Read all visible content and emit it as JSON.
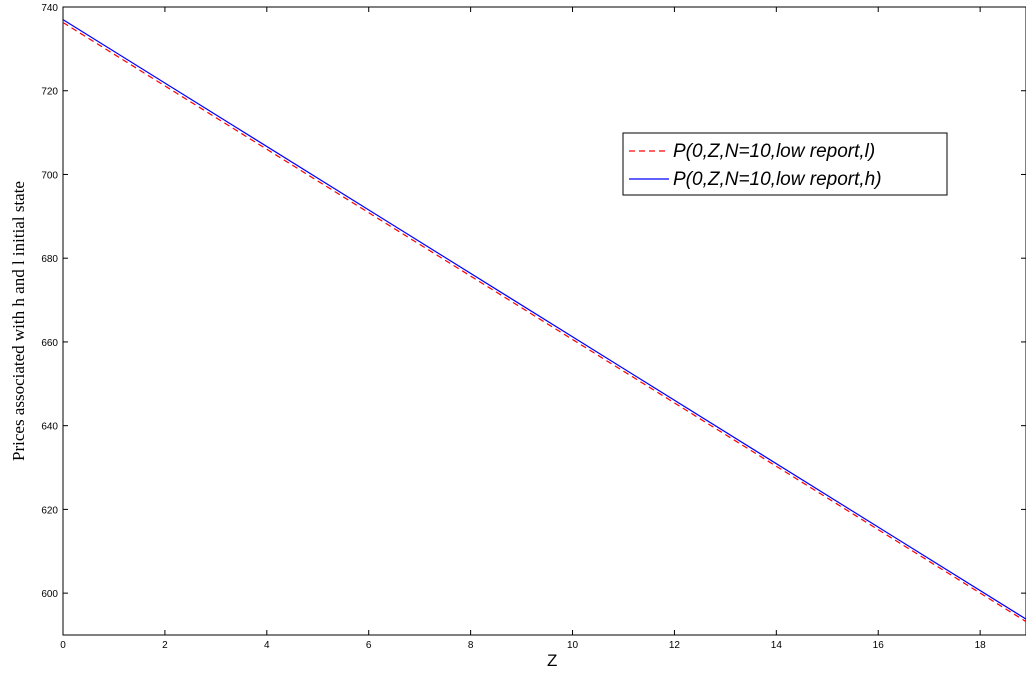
{
  "chart_data": {
    "type": "line",
    "xlabel": "Z",
    "ylabel": "Prices associated with h and l initial state",
    "xlim": [
      0,
      18.9
    ],
    "ylim": [
      590,
      740
    ],
    "xticks": [
      0,
      2,
      4,
      6,
      8,
      10,
      12,
      14,
      16,
      18
    ],
    "yticks": [
      600,
      620,
      640,
      660,
      680,
      700,
      720,
      740
    ],
    "grid": false,
    "legend_position": "top-right",
    "series": [
      {
        "name": "P(0,Z,N=10,low report,l)",
        "color": "#ff0000",
        "style": "dashed",
        "x": [
          0,
          18.9
        ],
        "y": [
          736.3,
          593.2
        ]
      },
      {
        "name": "P(0,Z,N=10,low report,h)",
        "color": "#0000ff",
        "style": "solid",
        "x": [
          0,
          18.9
        ],
        "y": [
          737.0,
          593.8
        ]
      }
    ]
  }
}
